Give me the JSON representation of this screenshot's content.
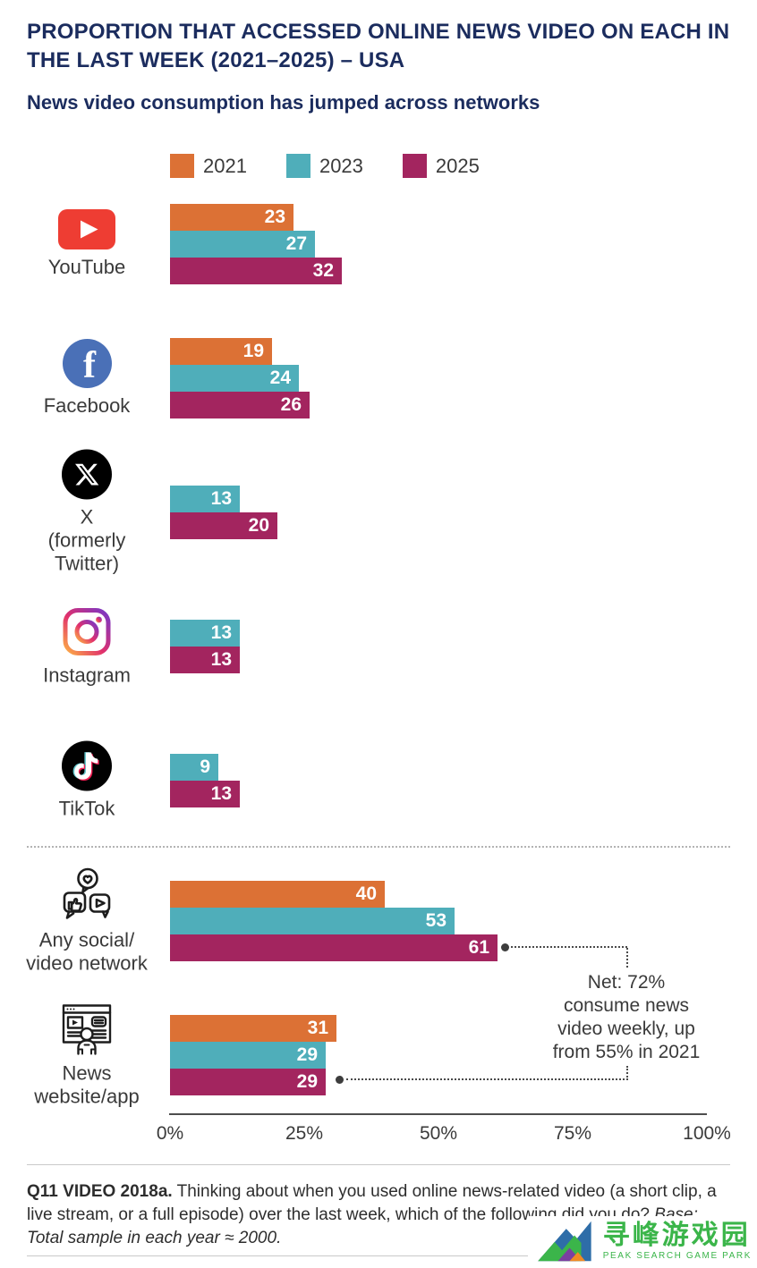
{
  "header": {
    "title": "PROPORTION THAT ACCESSED ONLINE NEWS VIDEO ON EACH IN\nTHE LAST WEEK (2021–2025) – USA",
    "subtitle": "News video consumption has jumped across networks"
  },
  "chart_data": {
    "type": "bar",
    "orientation": "horizontal",
    "unit": "percent",
    "series": [
      {
        "name": "2021",
        "color": "#DC7135"
      },
      {
        "name": "2023",
        "color": "#4FAEBA"
      },
      {
        "name": "2025",
        "color": "#A3255F"
      }
    ],
    "categories": [
      {
        "icon": "youtube",
        "label": "YouTube",
        "values": [
          23,
          27,
          32
        ]
      },
      {
        "icon": "facebook",
        "label": "Facebook",
        "values": [
          19,
          24,
          26
        ]
      },
      {
        "icon": "x",
        "label": "X\n(formerly\nTwitter)",
        "values": [
          null,
          13,
          20
        ]
      },
      {
        "icon": "instagram",
        "label": "Instagram",
        "values": [
          null,
          13,
          13
        ]
      },
      {
        "icon": "tiktok",
        "label": "TikTok",
        "values": [
          null,
          9,
          13
        ]
      },
      {
        "icon": "any-social",
        "label": "Any social/\nvideo network",
        "values": [
          40,
          53,
          61
        ]
      },
      {
        "icon": "news-web",
        "label": "News\nwebsite/app",
        "values": [
          31,
          29,
          29
        ]
      }
    ],
    "x_axis": {
      "min": 0,
      "max": 100,
      "ticks": [
        "0%",
        "25%",
        "50%",
        "75%",
        "100%"
      ]
    },
    "annotation": "Net: 72%\nconsume news\nvideo weekly, up\nfrom 55% in 2021"
  },
  "footer": {
    "q_bold": "Q11 VIDEO 2018a.",
    "q_text": " Thinking about when you used online news-related video (a short clip, a live stream, or a full episode) over the last week, which of the following did you do? ",
    "base_italic": "Base: Total sample in each year ≈ 2000."
  },
  "watermark": {
    "cn": "寻峰游戏园",
    "en": "PEAK SEARCH GAME PARK"
  }
}
